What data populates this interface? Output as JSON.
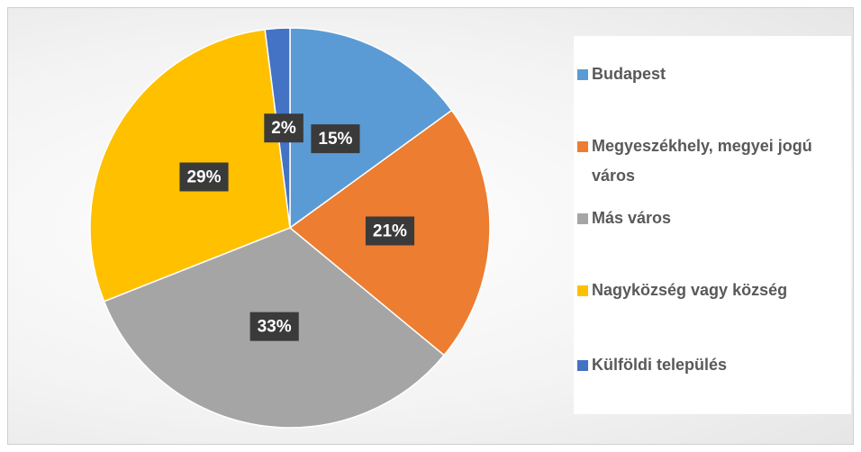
{
  "chart_data": {
    "type": "pie",
    "categories": [
      "Budapest",
      "Megyeszékhely, megyei jogú város",
      "Más város",
      "Nagyközség vagy község",
      "Külföldi település"
    ],
    "values": [
      15,
      21,
      33,
      29,
      2
    ],
    "value_labels": [
      "15%",
      "21%",
      "33%",
      "29%",
      "2%"
    ],
    "colors": [
      "#5b9bd5",
      "#ed7d31",
      "#a5a5a5",
      "#ffc000",
      "#4472c4"
    ],
    "legend": "right"
  }
}
